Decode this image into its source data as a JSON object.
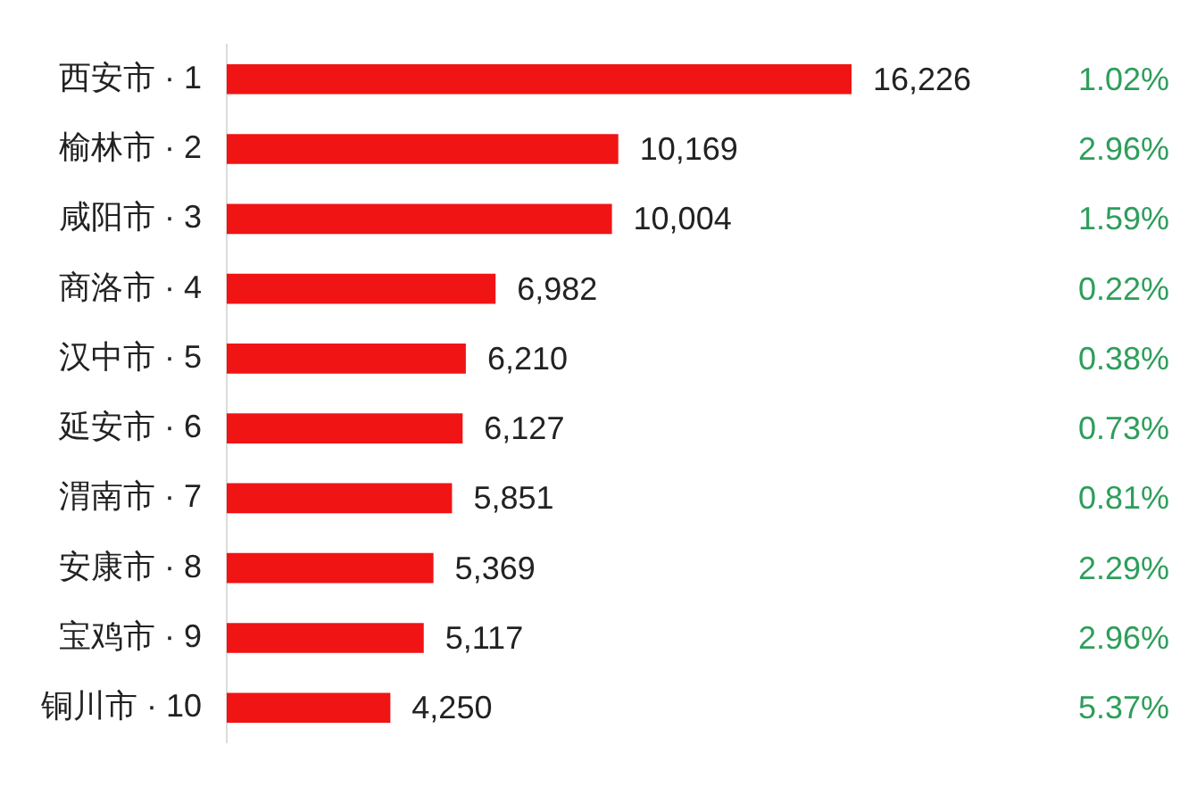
{
  "chart_data": {
    "type": "bar",
    "orientation": "horizontal",
    "categories": [
      "西安市 · 1",
      "榆林市 · 2",
      "咸阳市 · 3",
      "商洛市 · 4",
      "汉中市 · 5",
      "延安市 · 6",
      "渭南市 · 7",
      "安康市 · 8",
      "宝鸡市 · 9",
      "铜川市 · 10"
    ],
    "values": [
      16226,
      10169,
      10004,
      6982,
      6210,
      6127,
      5851,
      5369,
      5117,
      4250
    ],
    "value_labels": [
      "16,226",
      "10,169",
      "10,004",
      "6,982",
      "6,210",
      "6,127",
      "5,851",
      "5,369",
      "5,117",
      "4,250"
    ],
    "color": "#f01414",
    "tick_labels": "y",
    "annotations": [
      "1.02%",
      "2.96%",
      "1.59%",
      "0.22%",
      "0.38%",
      "0.73%",
      "0.81%",
      "2.29%",
      "2.96%",
      "5.37%"
    ]
  }
}
